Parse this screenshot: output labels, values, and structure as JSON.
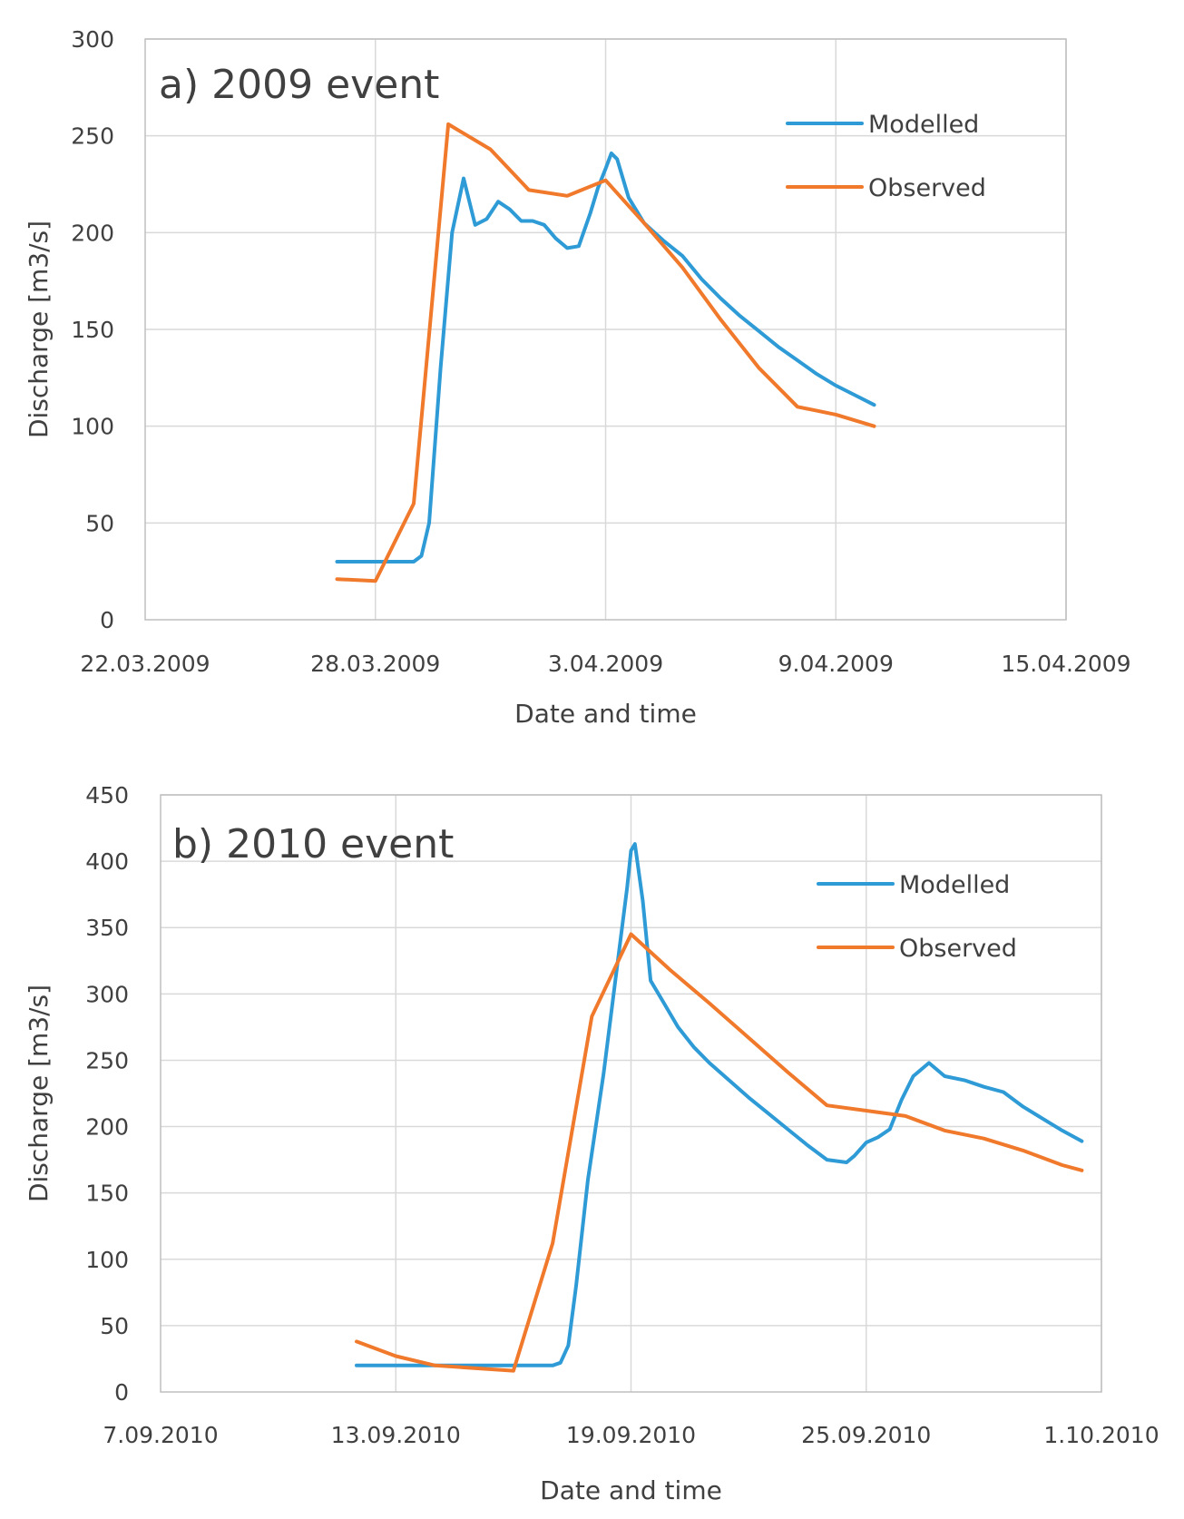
{
  "chart_data": [
    {
      "type": "line",
      "title": "a) 2009 event",
      "xlabel": "Date and time",
      "ylabel": "Discharge [m3/s]",
      "ylim": [
        0,
        300
      ],
      "yticks": [
        0,
        50,
        100,
        150,
        200,
        250,
        300
      ],
      "xlim": [
        0,
        24
      ],
      "xtick_values": [
        0,
        6,
        12,
        18,
        24
      ],
      "xtick_labels": [
        "22.03.2009",
        "28.03.2009",
        "3.04.2009",
        "9.04.2009",
        "15.04.2009"
      ],
      "x_unit": "days since 22.03.2009",
      "grid": true,
      "legend_position": "top-right",
      "series": [
        {
          "name": "Modelled",
          "color": "#2e9bd6",
          "x": [
            5.0,
            7.0,
            7.2,
            7.4,
            7.7,
            8.0,
            8.3,
            8.6,
            8.9,
            9.2,
            9.5,
            9.8,
            10.1,
            10.4,
            10.7,
            11.0,
            11.3,
            11.6,
            11.8,
            12.0,
            12.15,
            12.3,
            12.6,
            13.0,
            13.5,
            14.0,
            14.5,
            15.0,
            15.5,
            16.0,
            16.5,
            17.0,
            17.5,
            18.0,
            18.5,
            19.0
          ],
          "y": [
            30,
            30,
            33,
            50,
            130,
            200,
            228,
            204,
            207,
            216,
            212,
            206,
            206,
            204,
            197,
            192,
            193,
            210,
            223,
            233,
            241,
            238,
            218,
            205,
            196,
            188,
            176,
            166,
            157,
            149,
            141,
            134,
            127,
            121,
            116,
            111
          ]
        },
        {
          "name": "Observed",
          "color": "#f0792b",
          "x": [
            5.0,
            6.0,
            7.0,
            7.9,
            9.0,
            10.0,
            11.0,
            12.0,
            13.0,
            14.0,
            15.0,
            16.0,
            17.0,
            17.5,
            18.0,
            19.0
          ],
          "y": [
            21,
            20,
            60,
            256,
            243,
            222,
            219,
            227,
            205,
            182,
            155,
            130,
            110,
            108,
            106,
            100
          ]
        }
      ]
    },
    {
      "type": "line",
      "title": "b) 2010 event",
      "xlabel": "Date and time",
      "ylabel": "Discharge [m3/s]",
      "ylim": [
        0,
        450
      ],
      "yticks": [
        0,
        50,
        100,
        150,
        200,
        250,
        300,
        350,
        400,
        450
      ],
      "xlim": [
        0,
        24
      ],
      "xtick_values": [
        0,
        6,
        12,
        18,
        24
      ],
      "xtick_labels": [
        "7.09.2010",
        "13.09.2010",
        "19.09.2010",
        "25.09.2010",
        "1.10.2010"
      ],
      "x_unit": "days since 7.09.2010",
      "grid": true,
      "legend_position": "top-right",
      "series": [
        {
          "name": "Modelled",
          "color": "#2e9bd6",
          "x": [
            5.0,
            10.0,
            10.2,
            10.4,
            10.6,
            10.9,
            11.3,
            11.6,
            11.9,
            12.0,
            12.1,
            12.3,
            12.5,
            12.8,
            13.2,
            13.6,
            14.0,
            14.5,
            15.0,
            15.5,
            16.0,
            16.5,
            17.0,
            17.5,
            17.7,
            18.0,
            18.3,
            18.6,
            18.9,
            19.2,
            19.6,
            20.0,
            20.5,
            21.0,
            21.5,
            22.0,
            22.5,
            23.0,
            23.5
          ],
          "y": [
            20,
            20,
            22,
            35,
            80,
            160,
            240,
            310,
            380,
            408,
            413,
            370,
            310,
            295,
            275,
            260,
            248,
            235,
            222,
            210,
            198,
            186,
            175,
            173,
            178,
            188,
            192,
            198,
            220,
            238,
            248,
            238,
            235,
            230,
            226,
            215,
            206,
            197,
            189
          ]
        },
        {
          "name": "Observed",
          "color": "#f0792b",
          "x": [
            5.0,
            6.0,
            7.0,
            8.0,
            9.0,
            10.0,
            11.0,
            12.0,
            13.0,
            14.0,
            15.0,
            16.0,
            17.0,
            18.0,
            19.0,
            20.0,
            21.0,
            22.0,
            23.0,
            23.5
          ],
          "y": [
            38,
            27,
            20,
            18,
            16,
            112,
            283,
            345,
            318,
            293,
            267,
            241,
            216,
            212,
            208,
            197,
            191,
            182,
            171,
            167
          ]
        }
      ]
    }
  ]
}
